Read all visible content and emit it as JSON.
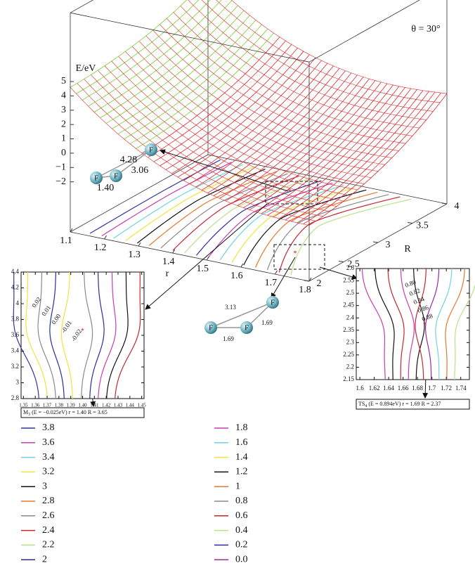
{
  "chart_data": {
    "type": "surface",
    "annotation": "θ = 30°",
    "zlabel": "E/eV",
    "xlabel": "r",
    "ylabel": "R",
    "zlim": [
      -5.5,
      5
    ],
    "zticks": [
      5,
      4,
      3,
      2,
      1,
      0,
      {
        "value": -1,
        "label": "−1"
      },
      {
        "value": -2,
        "label": "−2"
      }
    ],
    "xlim": [
      1.1,
      1.8
    ],
    "xticks": [
      1.1,
      1.2,
      1.3,
      1.4,
      1.5,
      1.6,
      1.7,
      1.8
    ],
    "ylim": [
      2,
      4
    ],
    "yticks": [
      2,
      2.5,
      3,
      3.5,
      4
    ],
    "molecules": [
      {
        "atoms": [
          "F",
          "F",
          "F"
        ],
        "bond_labels": [
          "4.28",
          "3.06",
          "1.40"
        ]
      },
      {
        "atoms": [
          "F",
          "F",
          "F"
        ],
        "bond_labels": [
          "3.13",
          "1.69",
          "1.69"
        ]
      }
    ],
    "insets": [
      {
        "xlim": [
          1.348,
          1.452
        ],
        "xticks": [
          1.35,
          1.36,
          1.37,
          1.38,
          1.39,
          {
            "value": 1.4,
            "label": "1.40"
          },
          1.41,
          1.42,
          1.43,
          1.44,
          1.45
        ],
        "ylim": [
          2.8,
          4.4
        ],
        "yticks": [
          2.8,
          3,
          3.2,
          3.4,
          3.6,
          3.8,
          4,
          4.2,
          4.4
        ],
        "contour_labels": [
          "0.02",
          "0.01",
          "0.00",
          "-0.01",
          "-0.02"
        ],
        "caption_symbol": "M",
        "caption_subscript": "3",
        "caption_text": " (E = −0.025eV) r = 1.40 R = 3.65"
      },
      {
        "xlim": [
          1.595,
          1.752
        ],
        "xticks": [
          1.6,
          1.62,
          1.64,
          1.66,
          1.68,
          1.7,
          1.72,
          1.74
        ],
        "ylim": [
          2.15,
          2.6
        ],
        "yticks": [
          2.15,
          2.2,
          2.25,
          2.3,
          2.35,
          2.4,
          2.45,
          2.5,
          2.55,
          2.6
        ],
        "contour_labels": [
          "0.80",
          "0.82",
          "0.84",
          "0.86",
          "0.88"
        ],
        "caption_symbol": "TS",
        "caption_subscript": "4",
        "caption_text": " (E = 0.894eV) r = 1.69 R = 2.37"
      }
    ],
    "legend": [
      {
        "label": "3.8",
        "color": "#34349a"
      },
      {
        "label": "3.6",
        "color": "#c83cb4"
      },
      {
        "label": "3.4",
        "color": "#6fd4df"
      },
      {
        "label": "3.2",
        "color": "#efe43a"
      },
      {
        "label": "3",
        "color": "#111111"
      },
      {
        "label": "2.8",
        "color": "#e6782c"
      },
      {
        "label": "2.6",
        "color": "#8a8a8a"
      },
      {
        "label": "2.4",
        "color": "#c6262e"
      },
      {
        "label": "2.2",
        "color": "#b7e28a"
      },
      {
        "label": "2",
        "color": "#2c2c9a"
      },
      {
        "label": "1.8",
        "color": "#c83cb4"
      },
      {
        "label": "1.6",
        "color": "#6fd4df"
      },
      {
        "label": "1.4",
        "color": "#efe43a"
      },
      {
        "label": "1.2",
        "color": "#111111"
      },
      {
        "label": "1",
        "color": "#e6782c"
      },
      {
        "label": "0.8",
        "color": "#8a8a8a"
      },
      {
        "label": "0.6",
        "color": "#c6262e"
      },
      {
        "label": "0.4",
        "color": "#b7e28a"
      },
      {
        "label": "0.2",
        "color": "#2c2c9a"
      },
      {
        "label": "0.0",
        "color": "#9a2aa0"
      }
    ]
  }
}
